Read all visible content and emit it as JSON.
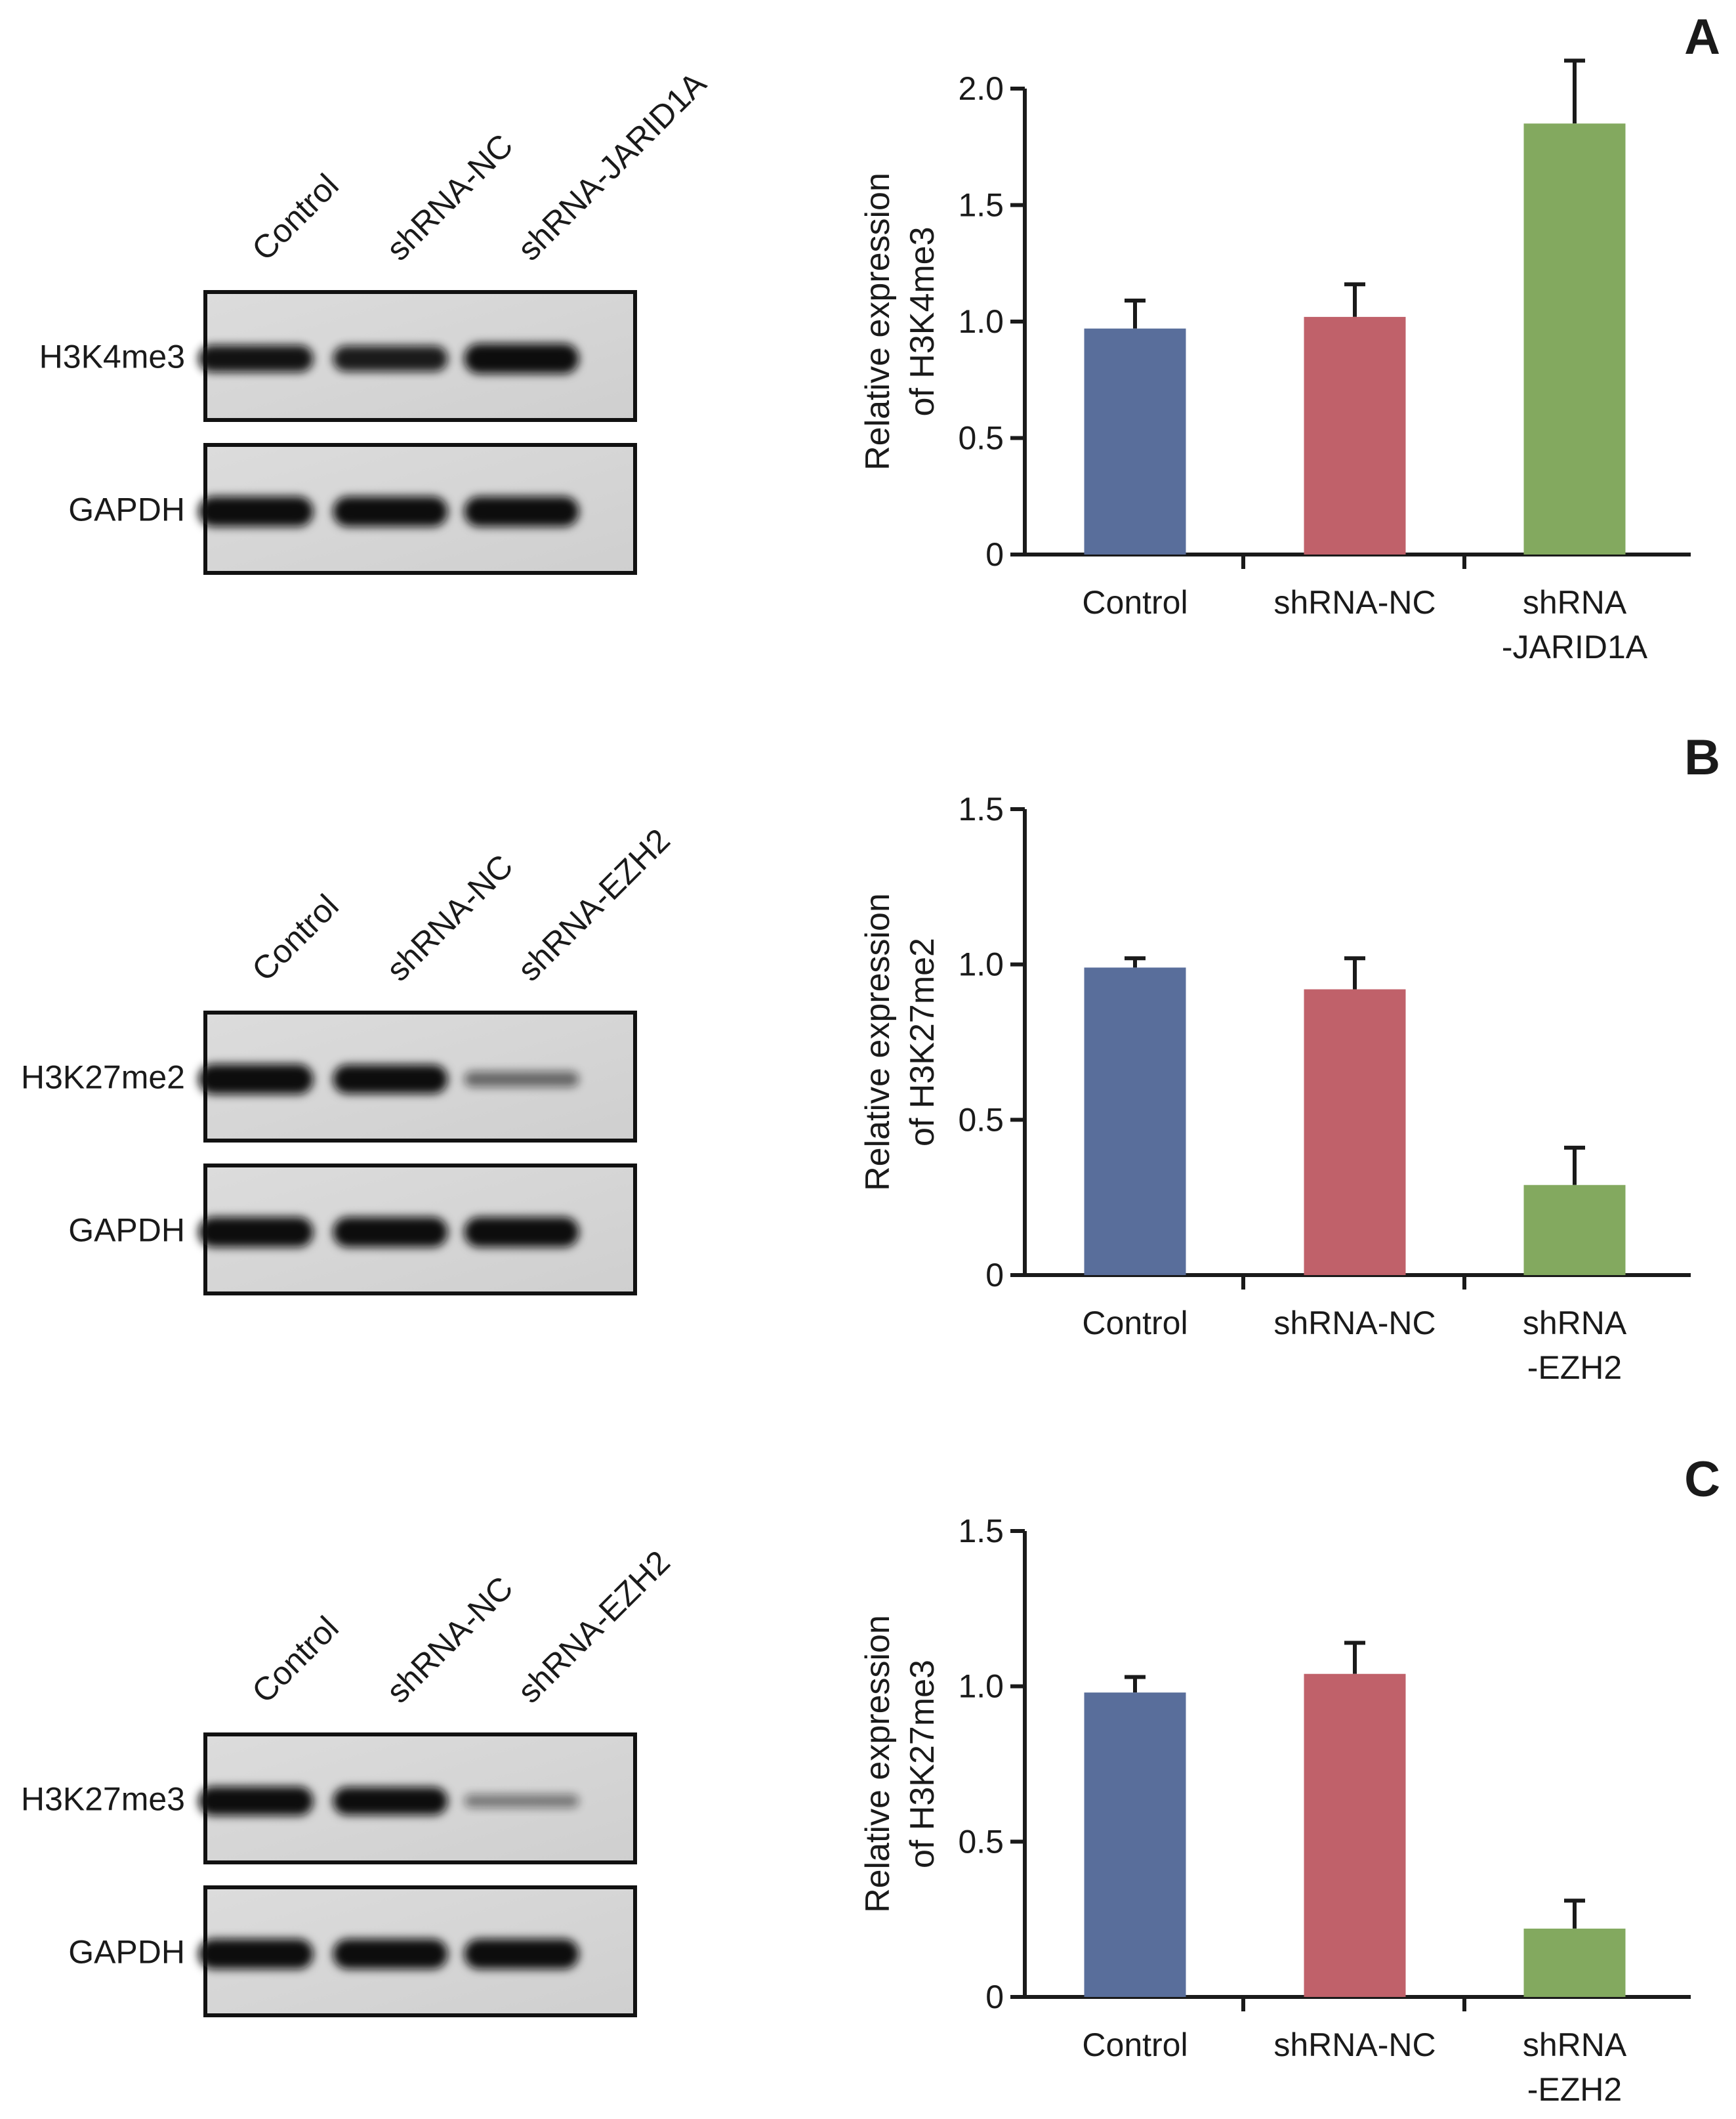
{
  "panels": [
    {
      "panel_label": "A",
      "blot": {
        "lanes": [
          "Control",
          "shRNA-NC",
          "shRNA-JARID1A"
        ],
        "rows": [
          {
            "label": "H3K4me3",
            "intensities": [
              0.85,
              0.8,
              1.0
            ]
          },
          {
            "label": "GAPDH",
            "intensities": [
              1.0,
              1.0,
              1.0
            ]
          }
        ]
      },
      "chart_data": {
        "type": "bar",
        "categories": [
          [
            "Control"
          ],
          [
            "shRNA-NC"
          ],
          [
            "shRNA",
            "-JARID1A"
          ]
        ],
        "values": [
          0.97,
          1.02,
          1.85
        ],
        "errors": [
          0.12,
          0.14,
          0.27
        ],
        "colors": [
          "#596e9b",
          "#c0616a",
          "#83a95f"
        ],
        "ylabel": [
          "Relative expression",
          "of H3K4me3"
        ],
        "ylim": [
          0,
          2.0
        ],
        "yticks": [
          0,
          0.5,
          1.0,
          1.5,
          2.0
        ],
        "ytick_labels": [
          "0",
          "0.5",
          "1.0",
          "1.5",
          "2.0"
        ]
      }
    },
    {
      "panel_label": "B",
      "blot": {
        "lanes": [
          "Control",
          "shRNA-NC",
          "shRNA-EZH2"
        ],
        "rows": [
          {
            "label": "H3K27me2",
            "intensities": [
              1.0,
              0.95,
              0.35
            ]
          },
          {
            "label": "GAPDH",
            "intensities": [
              1.0,
              1.0,
              1.0
            ]
          }
        ]
      },
      "chart_data": {
        "type": "bar",
        "categories": [
          [
            "Control"
          ],
          [
            "shRNA-NC"
          ],
          [
            "shRNA",
            "-EZH2"
          ]
        ],
        "values": [
          0.99,
          0.92,
          0.29
        ],
        "errors": [
          0.03,
          0.1,
          0.12
        ],
        "colors": [
          "#596e9b",
          "#c0616a",
          "#83a95f"
        ],
        "ylabel": [
          "Relative expression",
          "of H3K27me2"
        ],
        "ylim": [
          0,
          1.5
        ],
        "yticks": [
          0,
          0.5,
          1.0,
          1.5
        ],
        "ytick_labels": [
          "0",
          "0.5",
          "1.0",
          "1.5"
        ]
      }
    },
    {
      "panel_label": "C",
      "blot": {
        "lanes": [
          "Control",
          "shRNA-NC",
          "shRNA-EZH2"
        ],
        "rows": [
          {
            "label": "H3K27me3",
            "intensities": [
              0.95,
              0.9,
              0.25
            ]
          },
          {
            "label": "GAPDH",
            "intensities": [
              1.0,
              1.0,
              1.0
            ]
          }
        ]
      },
      "chart_data": {
        "type": "bar",
        "categories": [
          [
            "Control"
          ],
          [
            "shRNA-NC"
          ],
          [
            "shRNA",
            "-EZH2"
          ]
        ],
        "values": [
          0.98,
          1.04,
          0.22
        ],
        "errors": [
          0.05,
          0.1,
          0.09
        ],
        "colors": [
          "#596e9b",
          "#c0616a",
          "#83a95f"
        ],
        "ylabel": [
          "Relative expression",
          "of H3K27me3"
        ],
        "ylim": [
          0,
          1.5
        ],
        "yticks": [
          0,
          0.5,
          1.0,
          1.5
        ],
        "ytick_labels": [
          "0",
          "0.5",
          "1.0",
          "1.5"
        ]
      }
    }
  ]
}
